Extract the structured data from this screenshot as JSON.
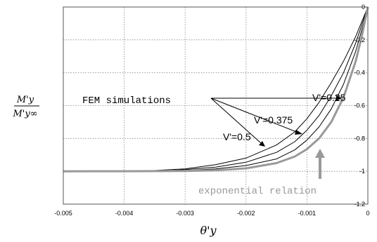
{
  "chart_data": {
    "type": "line",
    "title": "",
    "xlabel": "θ'y",
    "ylabel": {
      "numerator": "M'y",
      "denominator": "M'y∞"
    },
    "xlim": [
      -0.005,
      0
    ],
    "ylim": [
      -1.2,
      0
    ],
    "y_axis_side": "right",
    "grid": true,
    "x_ticks": [
      "-0.005",
      "-0.004",
      "-0.003",
      "-0.002",
      "-0.001",
      "0"
    ],
    "y_ticks": [
      "0",
      "-0.2",
      "-0.4",
      "-0.6",
      "-0.8",
      "-1",
      "-1.2"
    ],
    "series": [
      {
        "name": "V'=0.25",
        "color": "#000000",
        "x": [
          -0.0035,
          -0.003,
          -0.0025,
          -0.002,
          -0.0015,
          -0.0012,
          -0.001,
          -0.0008,
          -0.0006,
          -0.0004,
          -0.0002,
          -0.0001,
          0
        ],
        "y": [
          -0.995,
          -0.985,
          -0.96,
          -0.92,
          -0.84,
          -0.76,
          -0.68,
          -0.58,
          -0.46,
          -0.33,
          -0.18,
          -0.09,
          0
        ]
      },
      {
        "name": "V'=0.375",
        "color": "#000000",
        "x": [
          -0.0035,
          -0.003,
          -0.0025,
          -0.002,
          -0.0015,
          -0.0012,
          -0.001,
          -0.0008,
          -0.0006,
          -0.0004,
          -0.0002,
          -0.0001,
          0
        ],
        "y": [
          -1.0,
          -0.99,
          -0.975,
          -0.945,
          -0.885,
          -0.82,
          -0.75,
          -0.66,
          -0.54,
          -0.4,
          -0.22,
          -0.11,
          0
        ]
      },
      {
        "name": "V'=0.5",
        "color": "#000000",
        "x": [
          -0.0035,
          -0.003,
          -0.0025,
          -0.002,
          -0.0015,
          -0.0012,
          -0.001,
          -0.0008,
          -0.0006,
          -0.0004,
          -0.0002,
          -0.0001,
          0
        ],
        "y": [
          -1.0,
          -0.995,
          -0.985,
          -0.965,
          -0.925,
          -0.87,
          -0.81,
          -0.73,
          -0.62,
          -0.47,
          -0.27,
          -0.14,
          0
        ]
      },
      {
        "name": "exponential relation",
        "color": "#999999",
        "x": [
          -0.005,
          -0.004,
          -0.003,
          -0.0025,
          -0.002,
          -0.0015,
          -0.0012,
          -0.001,
          -0.0008,
          -0.0006,
          -0.0004,
          -0.0002,
          -0.0001,
          0
        ],
        "y": [
          -1.0,
          -0.9998,
          -0.998,
          -0.994,
          -0.982,
          -0.95,
          -0.91,
          -0.865,
          -0.8,
          -0.7,
          -0.55,
          -0.33,
          -0.18,
          0
        ]
      }
    ],
    "annotations": {
      "fem_label": "FEM simulations",
      "v025": "V'=0.25",
      "v0375": "V'=0.375",
      "v05": "V'=0.5",
      "exp_label": "exponential relation"
    }
  }
}
